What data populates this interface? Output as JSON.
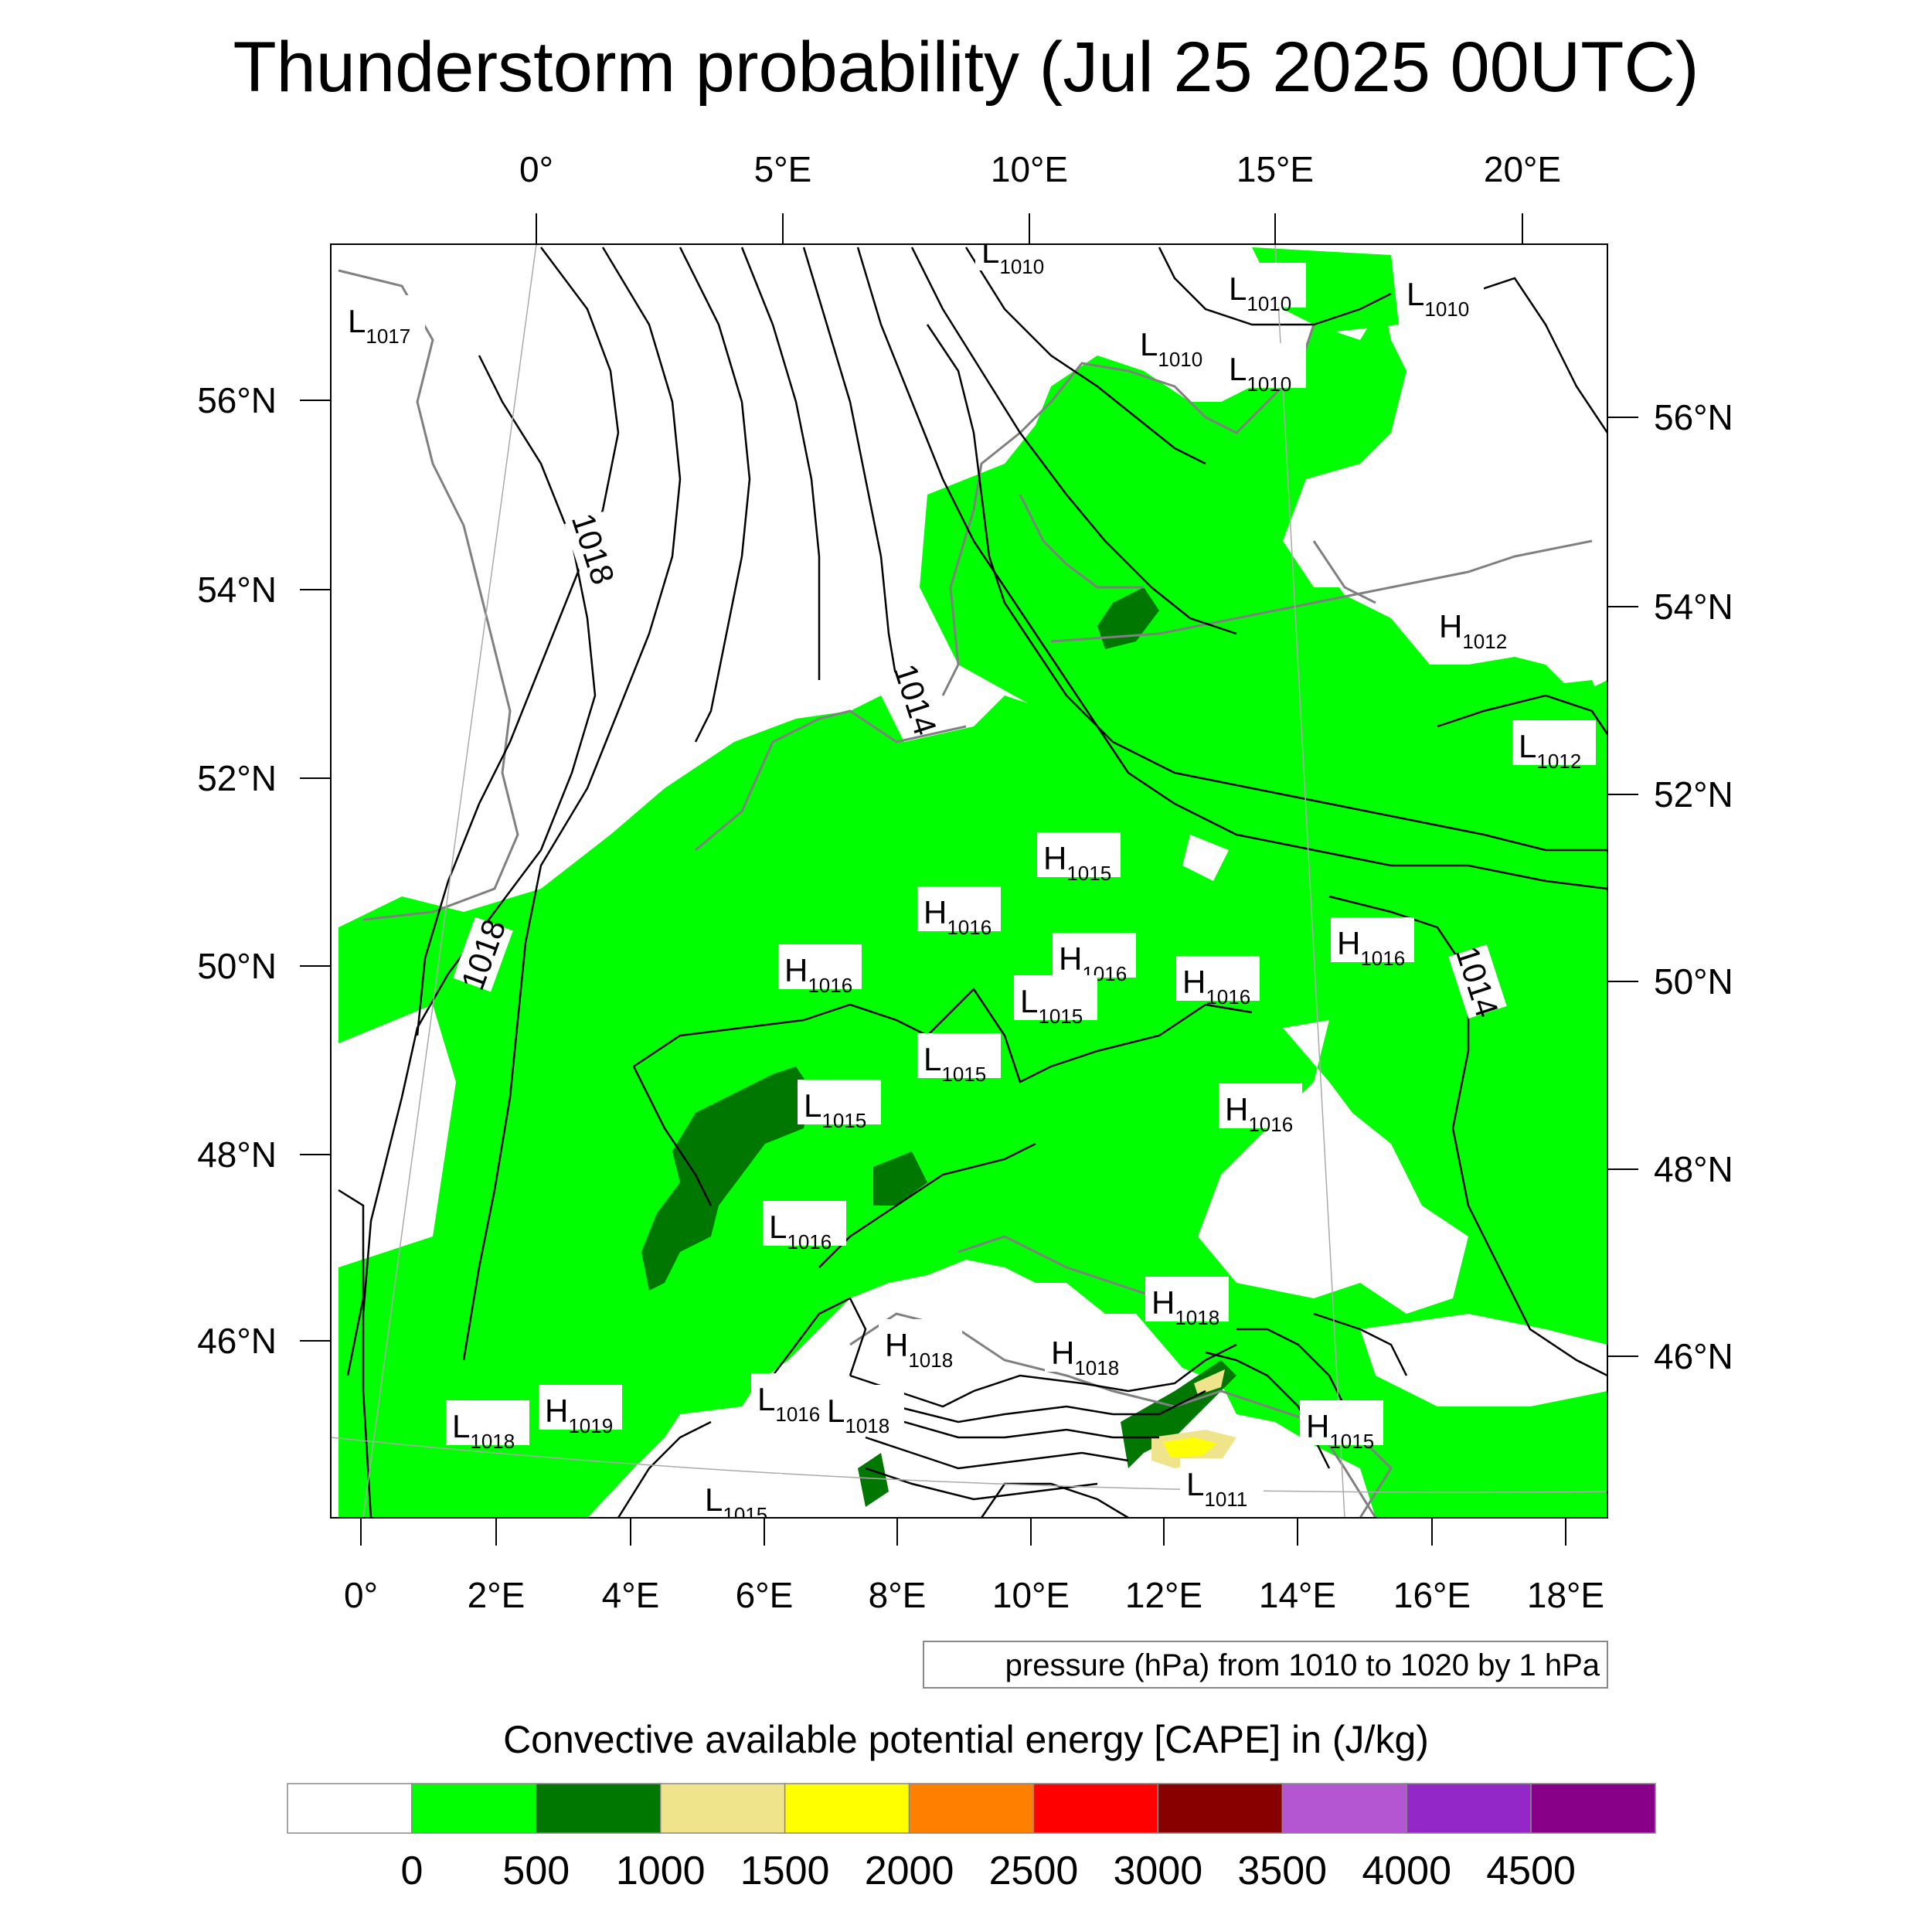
{
  "title": "Thunderstorm probability (Jul 25 2025 00UTC)",
  "top_axis_labels": [
    "0°",
    "5°E",
    "10°E",
    "15°E",
    "20°E"
  ],
  "bottom_axis_labels": [
    "0°",
    "2°E",
    "4°E",
    "6°E",
    "8°E",
    "10°E",
    "12°E",
    "14°E",
    "16°E",
    "18°E"
  ],
  "left_axis_labels": [
    "56°N",
    "54°N",
    "52°N",
    "50°N",
    "48°N",
    "46°N"
  ],
  "right_axis_labels": [
    "56°N",
    "54°N",
    "52°N",
    "50°N",
    "48°N",
    "46°N"
  ],
  "contour_note": "pressure (hPa) from 1010 to 1020 by 1 hPa",
  "isobar_line_labels": [
    "1018",
    "1014",
    "1018",
    "1014"
  ],
  "pressure_centers": [
    {
      "letter": "L",
      "value": "1010"
    },
    {
      "letter": "L",
      "value": "1010"
    },
    {
      "letter": "L",
      "value": "1010"
    },
    {
      "letter": "L",
      "value": "1010"
    },
    {
      "letter": "L",
      "value": "1010"
    },
    {
      "letter": "L",
      "value": "1017"
    },
    {
      "letter": "H",
      "value": "1012"
    },
    {
      "letter": "L",
      "value": "1012"
    },
    {
      "letter": "H",
      "value": "1015"
    },
    {
      "letter": "H",
      "value": "1016"
    },
    {
      "letter": "H",
      "value": "1016"
    },
    {
      "letter": "H",
      "value": "1016"
    },
    {
      "letter": "H",
      "value": "1016"
    },
    {
      "letter": "H",
      "value": "1016"
    },
    {
      "letter": "L",
      "value": "1015"
    },
    {
      "letter": "L",
      "value": "1015"
    },
    {
      "letter": "L",
      "value": "1015"
    },
    {
      "letter": "H",
      "value": "1016"
    },
    {
      "letter": "L",
      "value": "1016"
    },
    {
      "letter": "H",
      "value": "1018"
    },
    {
      "letter": "H",
      "value": "1018"
    },
    {
      "letter": "H",
      "value": "1018"
    },
    {
      "letter": "L",
      "value": "1016"
    },
    {
      "letter": "L",
      "value": "1018"
    },
    {
      "letter": "L",
      "value": "1018"
    },
    {
      "letter": "H",
      "value": "1019"
    },
    {
      "letter": "H",
      "value": "1015"
    },
    {
      "letter": "L",
      "value": "1015"
    },
    {
      "letter": "L",
      "value": "1011"
    }
  ],
  "colorbar": {
    "title": "Convective available potential energy [CAPE] in (J/kg)",
    "colors": [
      "#ffffff",
      "#00ff00",
      "#007700",
      "#efe38c",
      "#ffff00",
      "#ff8000",
      "#ff0000",
      "#880000",
      "#b455d2",
      "#9427c8",
      "#880088"
    ],
    "tick_labels": [
      "0",
      "500",
      "1000",
      "1500",
      "2000",
      "2500",
      "3000",
      "3500",
      "4000",
      "4500"
    ]
  }
}
